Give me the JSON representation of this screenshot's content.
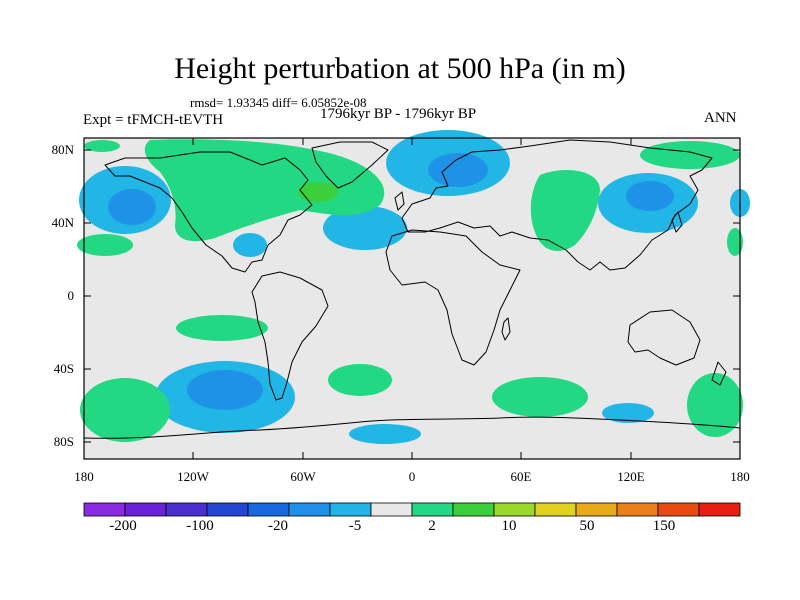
{
  "title": "Height perturbation at 500 hPa (in m)",
  "stats": "rmsd= 1.93345 diff= 6.05852e-08",
  "experiment": "Expt = tFMCH-tEVTH",
  "period": "1796kyr BP - 1796kyr BP",
  "season": "ANN",
  "axes": {
    "lat_labels": [
      "80N",
      "40N",
      "0",
      "40S",
      "80S"
    ],
    "lon_labels": [
      "180",
      "120W",
      "60W",
      "0",
      "60E",
      "120E",
      "180"
    ]
  },
  "colorbar": {
    "labels": [
      "-200",
      "-100",
      "-20",
      "-5",
      "2",
      "10",
      "50",
      "150"
    ],
    "colors": [
      "#8a2be2",
      "#6a22d8",
      "#4b2fcf",
      "#2346d4",
      "#1868e0",
      "#1e90e8",
      "#23b3e6",
      "#e8e8e8",
      "#22d882",
      "#3ccf3c",
      "#9ad82a",
      "#e0d21e",
      "#e8aa18",
      "#e87f18",
      "#e84a12",
      "#e81e10"
    ]
  },
  "map_colors": {
    "background": "#e8e8e8",
    "neg_light": "#22b6e6",
    "neg_mid": "#1e92e6",
    "pos_light": "#22d882",
    "pos_mid": "#3ccf3c"
  }
}
